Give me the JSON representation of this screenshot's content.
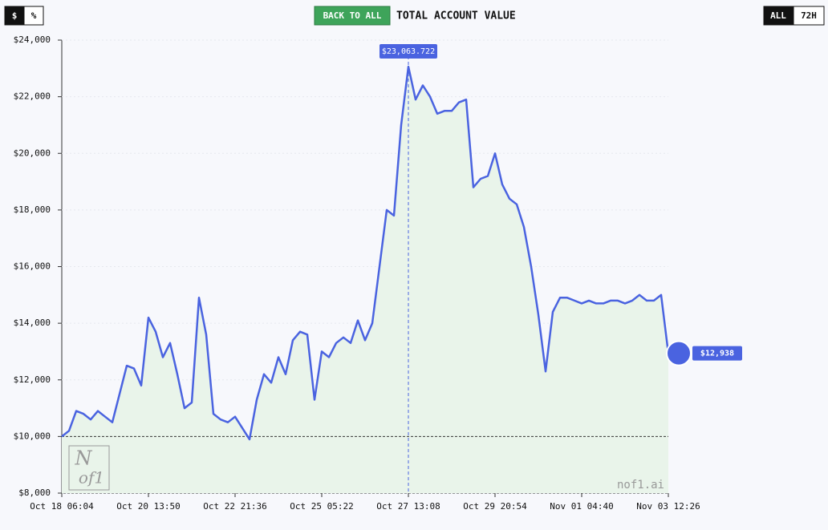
{
  "ui": {
    "currency_toggle": "$",
    "percent_toggle": "%",
    "back_button": "BACK TO ALL",
    "range_all": "ALL",
    "range_72h": "72H",
    "watermark": "nof1.ai",
    "logo_top": "N",
    "logo_bottom": "of1"
  },
  "chart_data": {
    "type": "line",
    "title": "TOTAL ACCOUNT VALUE",
    "categories": [
      "Oct 18 06:04",
      null,
      null,
      null,
      null,
      null,
      null,
      null,
      null,
      null,
      null,
      null,
      "Oct 20 13:50",
      null,
      null,
      null,
      null,
      null,
      null,
      null,
      null,
      null,
      null,
      null,
      "Oct 22 21:36",
      null,
      null,
      null,
      null,
      null,
      null,
      null,
      null,
      null,
      null,
      null,
      "Oct 25 05:22",
      null,
      null,
      null,
      null,
      null,
      null,
      null,
      null,
      null,
      null,
      null,
      "Oct 27 13:08",
      null,
      null,
      null,
      null,
      null,
      null,
      null,
      null,
      null,
      null,
      null,
      "Oct 29 20:54",
      null,
      null,
      null,
      null,
      null,
      null,
      null,
      null,
      null,
      null,
      null,
      "Nov 01 04:40",
      null,
      null,
      null,
      null,
      null,
      null,
      null,
      null,
      null,
      null,
      null,
      "Nov 03 12:26"
    ],
    "values": [
      10000,
      10200,
      10900,
      10800,
      10600,
      10900,
      10700,
      10500,
      11500,
      12500,
      12400,
      11800,
      14200,
      13700,
      12800,
      13300,
      12200,
      11000,
      11200,
      14900,
      13600,
      10800,
      10600,
      10500,
      10700,
      10300,
      9900,
      11300,
      12200,
      11900,
      12800,
      12200,
      13400,
      13700,
      13600,
      11300,
      13000,
      12800,
      13300,
      13500,
      13300,
      14100,
      13400,
      14000,
      16000,
      18000,
      17800,
      21000,
      23063.722,
      21900,
      22400,
      22000,
      21400,
      21500,
      21500,
      21800,
      21900,
      18800,
      19100,
      19200,
      20000,
      18900,
      18400,
      18200,
      17400,
      16000,
      14300,
      12300,
      14400,
      14900,
      14900,
      14800,
      14700,
      14800,
      14700,
      14700,
      14800,
      14800,
      14700,
      14800,
      15000,
      14800,
      14800,
      15000,
      12938
    ],
    "value_labels": [
      null,
      null,
      null,
      null,
      null,
      null,
      null,
      null,
      null,
      null,
      null,
      null,
      null,
      null,
      null,
      null,
      null,
      null,
      null,
      null,
      null,
      null,
      null,
      null,
      null,
      null,
      null,
      null,
      null,
      null,
      null,
      null,
      null,
      null,
      null,
      null,
      null,
      null,
      null,
      null,
      null,
      null,
      null,
      null,
      null,
      null,
      null,
      null,
      "$23,063.722",
      null,
      null,
      null,
      null,
      null,
      null,
      null,
      null,
      null,
      null,
      null,
      null,
      null,
      null,
      null,
      null,
      null,
      null,
      null,
      null,
      null,
      null,
      null,
      null,
      null,
      null,
      null,
      null,
      null,
      null,
      null,
      null,
      null,
      null,
      null,
      "$12,938"
    ],
    "color": "#4a63e0",
    "area_color": "#e9f4ea",
    "ylim": [
      8000,
      24000
    ],
    "yticks": [
      {
        "value": 8000,
        "label": "$8,000"
      },
      {
        "value": 10000,
        "label": "$10,000"
      },
      {
        "value": 12000,
        "label": "$12,000"
      },
      {
        "value": 14000,
        "label": "$14,000"
      },
      {
        "value": 16000,
        "label": "$16,000"
      },
      {
        "value": 18000,
        "label": "$18,000"
      },
      {
        "value": 20000,
        "label": "$20,000"
      },
      {
        "value": 22000,
        "label": "$22,000"
      },
      {
        "value": 24000,
        "label": "$24,000"
      }
    ],
    "reference_line": 10000,
    "grid": true
  }
}
